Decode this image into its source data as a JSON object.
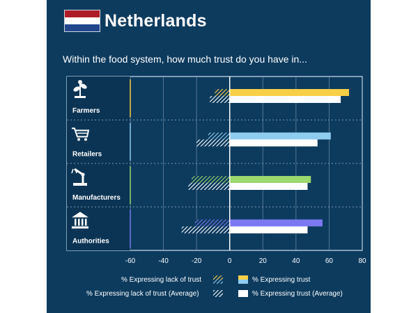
{
  "header": {
    "title": "Netherlands",
    "subtitle": "Within the food system, how much trust do you have in...",
    "flag_colors": [
      "#ae1c28",
      "#ffffff",
      "#21468b"
    ]
  },
  "colors": {
    "background": "#0d3b5e",
    "average": "#ffffff",
    "farmers": "#f7cf46",
    "retailers": "#8ecdf0",
    "manufacturers": "#9bd86d",
    "authorities": "#7b78f0"
  },
  "chart_data": {
    "type": "bar",
    "orientation": "horizontal-diverging",
    "categories": [
      "Farmers",
      "Retailers",
      "Manufacturers",
      "Authorities"
    ],
    "category_icons": [
      "farmer-plant-icon",
      "shopping-cart-icon",
      "factory-robot-arm-icon",
      "government-building-icon"
    ],
    "series": [
      {
        "name": "% Expressing lack of trust",
        "values": [
          -9,
          -13,
          -23,
          -21
        ]
      },
      {
        "name": "% Expressing trust",
        "values": [
          72,
          61,
          49,
          56
        ]
      },
      {
        "name": "% Expressing lack of trust (Average)",
        "values": [
          -12,
          -20,
          -25,
          -29
        ]
      },
      {
        "name": "% Expressing trust (Average)",
        "values": [
          67,
          53,
          47,
          47
        ]
      }
    ],
    "xlim": [
      -60,
      80
    ],
    "xticks": [
      -60,
      -40,
      -20,
      0,
      20,
      40,
      60,
      80
    ],
    "grid": true,
    "legend_position": "bottom"
  },
  "legend": {
    "lack": "% Expressing lack of trust",
    "trust": "% Expressing trust",
    "lack_avg": "% Expressing lack of trust (Average)",
    "trust_avg": "% Expressing trust (Average)"
  }
}
